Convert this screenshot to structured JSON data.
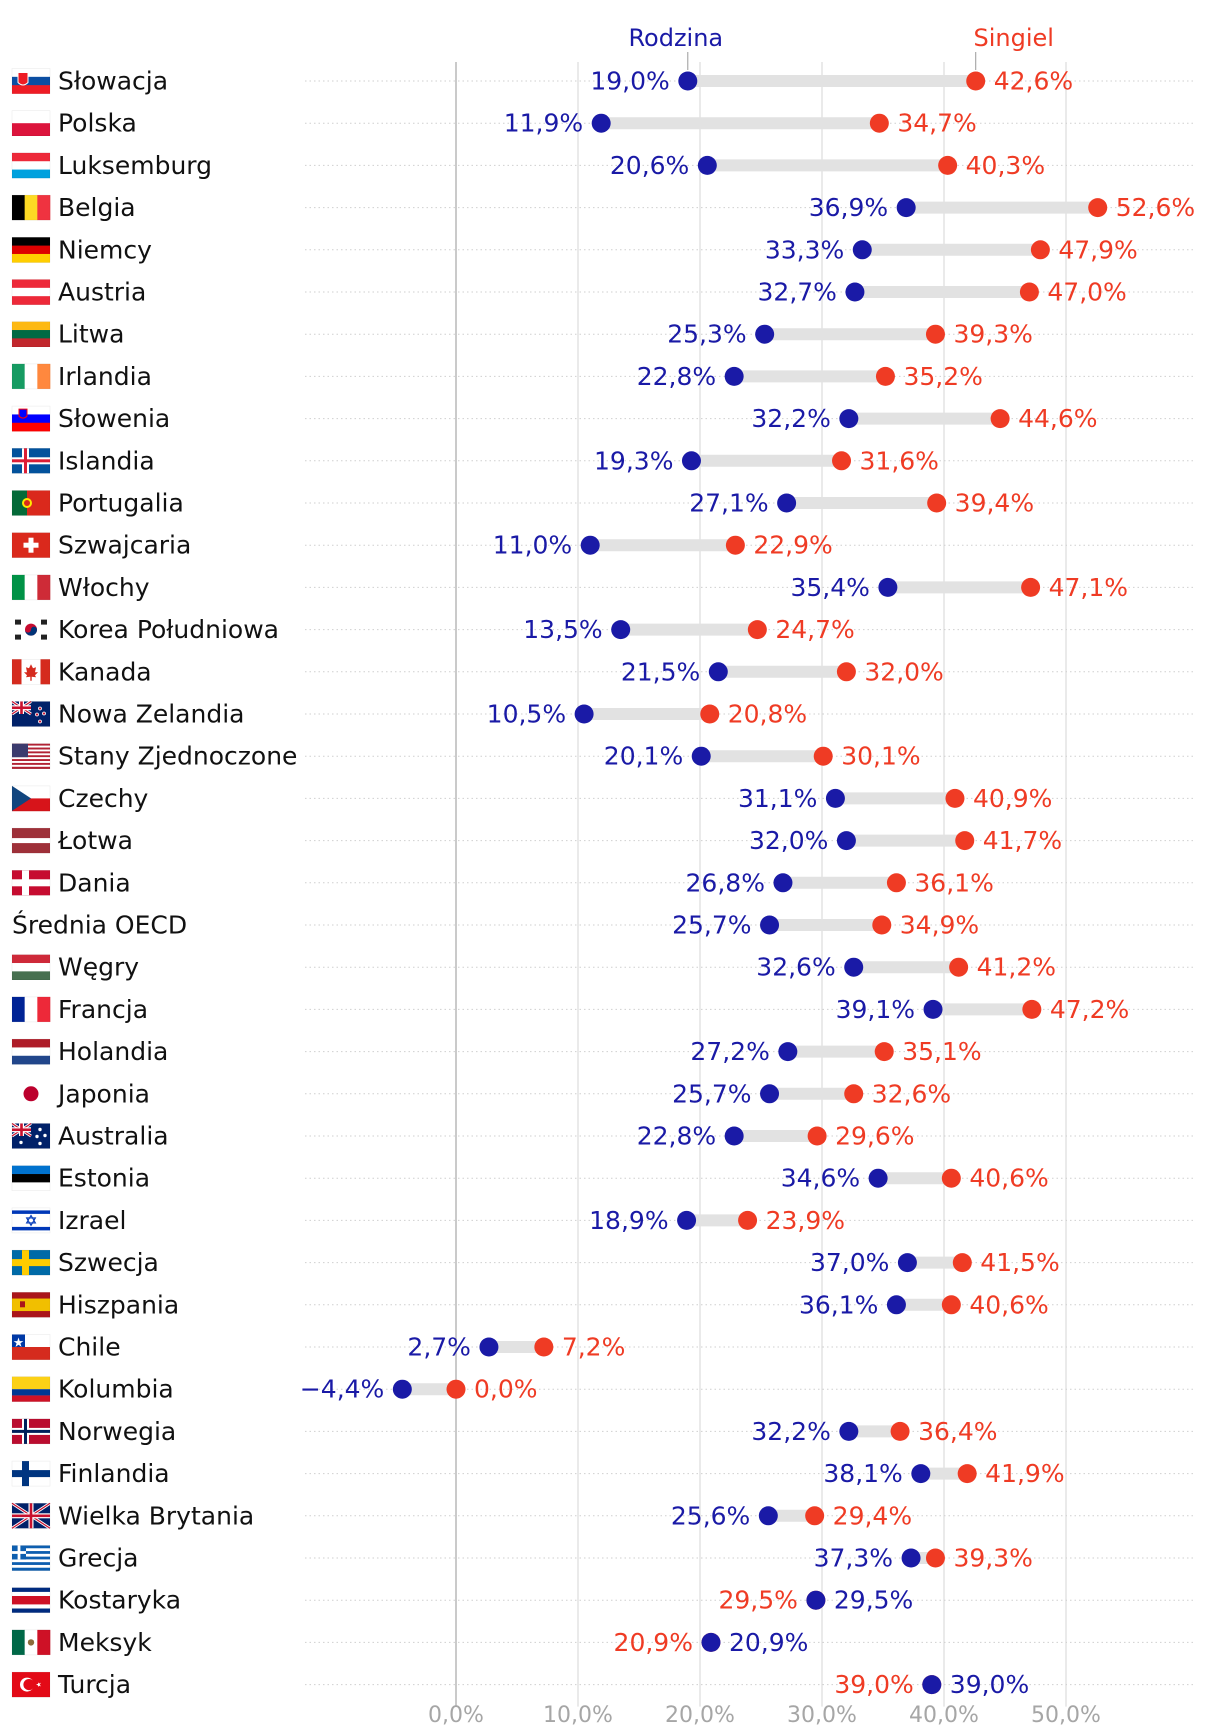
{
  "chart_data": {
    "type": "dumbbell",
    "title": "",
    "xlabel": "",
    "ylabel": "",
    "xlim": [
      -12.5,
      60
    ],
    "ticks": [
      0,
      10,
      20,
      30,
      40,
      50
    ],
    "tick_labels": [
      "0,0%",
      "10,0%",
      "20,0%",
      "30,0%",
      "40,0%",
      "50,0%"
    ],
    "grid": true,
    "legend": {
      "family": "Rodzina",
      "single": "Singiel",
      "position": "top"
    },
    "colors": {
      "family": "#1a1aa6",
      "single": "#ef3b24",
      "connector": "#e2e2e2",
      "grid": "#d9d9d9",
      "axis_label": "#a6a6a6",
      "country_text": "#111111"
    },
    "rows": [
      {
        "country": "Słowacja",
        "flag": "sk-flag-icon",
        "family": 19.0,
        "single": 42.6,
        "family_label": "19,0%",
        "single_label": "42,6%"
      },
      {
        "country": "Polska",
        "flag": "pl-flag-icon",
        "family": 11.9,
        "single": 34.7,
        "family_label": "11,9%",
        "single_label": "34,7%"
      },
      {
        "country": "Luksemburg",
        "flag": "lu-flag-icon",
        "family": 20.6,
        "single": 40.3,
        "family_label": "20,6%",
        "single_label": "40,3%"
      },
      {
        "country": "Belgia",
        "flag": "be-flag-icon",
        "family": 36.9,
        "single": 52.6,
        "family_label": "36,9%",
        "single_label": "52,6%"
      },
      {
        "country": "Niemcy",
        "flag": "de-flag-icon",
        "family": 33.3,
        "single": 47.9,
        "family_label": "33,3%",
        "single_label": "47,9%"
      },
      {
        "country": "Austria",
        "flag": "at-flag-icon",
        "family": 32.7,
        "single": 47.0,
        "family_label": "32,7%",
        "single_label": "47,0%"
      },
      {
        "country": "Litwa",
        "flag": "lt-flag-icon",
        "family": 25.3,
        "single": 39.3,
        "family_label": "25,3%",
        "single_label": "39,3%"
      },
      {
        "country": "Irlandia",
        "flag": "ie-flag-icon",
        "family": 22.8,
        "single": 35.2,
        "family_label": "22,8%",
        "single_label": "35,2%"
      },
      {
        "country": "Słowenia",
        "flag": "si-flag-icon",
        "family": 32.2,
        "single": 44.6,
        "family_label": "32,2%",
        "single_label": "44,6%"
      },
      {
        "country": "Islandia",
        "flag": "is-flag-icon",
        "family": 19.3,
        "single": 31.6,
        "family_label": "19,3%",
        "single_label": "31,6%"
      },
      {
        "country": "Portugalia",
        "flag": "pt-flag-icon",
        "family": 27.1,
        "single": 39.4,
        "family_label": "27,1%",
        "single_label": "39,4%"
      },
      {
        "country": "Szwajcaria",
        "flag": "ch-flag-icon",
        "family": 11.0,
        "single": 22.9,
        "family_label": "11,0%",
        "single_label": "22,9%"
      },
      {
        "country": "Włochy",
        "flag": "it-flag-icon",
        "family": 35.4,
        "single": 47.1,
        "family_label": "35,4%",
        "single_label": "47,1%"
      },
      {
        "country": "Korea Południowa",
        "flag": "kr-flag-icon",
        "family": 13.5,
        "single": 24.7,
        "family_label": "13,5%",
        "single_label": "24,7%"
      },
      {
        "country": "Kanada",
        "flag": "ca-flag-icon",
        "family": 21.5,
        "single": 32.0,
        "family_label": "21,5%",
        "single_label": "32,0%"
      },
      {
        "country": "Nowa Zelandia",
        "flag": "nz-flag-icon",
        "family": 10.5,
        "single": 20.8,
        "family_label": "10,5%",
        "single_label": "20,8%"
      },
      {
        "country": "Stany Zjednoczone",
        "flag": "us-flag-icon",
        "family": 20.1,
        "single": 30.1,
        "family_label": "20,1%",
        "single_label": "30,1%"
      },
      {
        "country": "Czechy",
        "flag": "cz-flag-icon",
        "family": 31.1,
        "single": 40.9,
        "family_label": "31,1%",
        "single_label": "40,9%"
      },
      {
        "country": "Łotwa",
        "flag": "lv-flag-icon",
        "family": 32.0,
        "single": 41.7,
        "family_label": "32,0%",
        "single_label": "41,7%"
      },
      {
        "country": "Dania",
        "flag": "dk-flag-icon",
        "family": 26.8,
        "single": 36.1,
        "family_label": "26,8%",
        "single_label": "36,1%"
      },
      {
        "country": "Średnia OECD",
        "flag": "",
        "family": 25.7,
        "single": 34.9,
        "family_label": "25,7%",
        "single_label": "34,9%"
      },
      {
        "country": "Węgry",
        "flag": "hu-flag-icon",
        "family": 32.6,
        "single": 41.2,
        "family_label": "32,6%",
        "single_label": "41,2%"
      },
      {
        "country": "Francja",
        "flag": "fr-flag-icon",
        "family": 39.1,
        "single": 47.2,
        "family_label": "39,1%",
        "single_label": "47,2%"
      },
      {
        "country": "Holandia",
        "flag": "nl-flag-icon",
        "family": 27.2,
        "single": 35.1,
        "family_label": "27,2%",
        "single_label": "35,1%"
      },
      {
        "country": "Japonia",
        "flag": "jp-flag-icon",
        "family": 25.7,
        "single": 32.6,
        "family_label": "25,7%",
        "single_label": "32,6%"
      },
      {
        "country": "Australia",
        "flag": "au-flag-icon",
        "family": 22.8,
        "single": 29.6,
        "family_label": "22,8%",
        "single_label": "29,6%"
      },
      {
        "country": "Estonia",
        "flag": "ee-flag-icon",
        "family": 34.6,
        "single": 40.6,
        "family_label": "34,6%",
        "single_label": "40,6%"
      },
      {
        "country": "Izrael",
        "flag": "il-flag-icon",
        "family": 18.9,
        "single": 23.9,
        "family_label": "18,9%",
        "single_label": "23,9%"
      },
      {
        "country": "Szwecja",
        "flag": "se-flag-icon",
        "family": 37.0,
        "single": 41.5,
        "family_label": "37,0%",
        "single_label": "41,5%"
      },
      {
        "country": "Hiszpania",
        "flag": "es-flag-icon",
        "family": 36.1,
        "single": 40.6,
        "family_label": "36,1%",
        "single_label": "40,6%"
      },
      {
        "country": "Chile",
        "flag": "cl-flag-icon",
        "family": 2.7,
        "single": 7.2,
        "family_label": "2,7%",
        "single_label": "7,2%"
      },
      {
        "country": "Kolumbia",
        "flag": "co-flag-icon",
        "family": -4.4,
        "single": 0.0,
        "family_label": "−4,4%",
        "single_label": "0,0%"
      },
      {
        "country": "Norwegia",
        "flag": "no-flag-icon",
        "family": 32.2,
        "single": 36.4,
        "family_label": "32,2%",
        "single_label": "36,4%"
      },
      {
        "country": "Finlandia",
        "flag": "fi-flag-icon",
        "family": 38.1,
        "single": 41.9,
        "family_label": "38,1%",
        "single_label": "41,9%"
      },
      {
        "country": "Wielka Brytania",
        "flag": "gb-flag-icon",
        "family": 25.6,
        "single": 29.4,
        "family_label": "25,6%",
        "single_label": "29,4%"
      },
      {
        "country": "Grecja",
        "flag": "gr-flag-icon",
        "family": 37.3,
        "single": 39.3,
        "family_label": "37,3%",
        "single_label": "39,3%"
      },
      {
        "country": "Kostaryka",
        "flag": "cr-flag-icon",
        "family": 29.5,
        "single": 29.5,
        "family_label": "29,5%",
        "single_label": "29,5%"
      },
      {
        "country": "Meksyk",
        "flag": "mx-flag-icon",
        "family": 20.9,
        "single": 20.9,
        "family_label": "20,9%",
        "single_label": "20,9%"
      },
      {
        "country": "Turcja",
        "flag": "tr-flag-icon",
        "family": 39.0,
        "single": 39.0,
        "family_label": "39,0%",
        "single_label": "39,0%"
      }
    ]
  }
}
